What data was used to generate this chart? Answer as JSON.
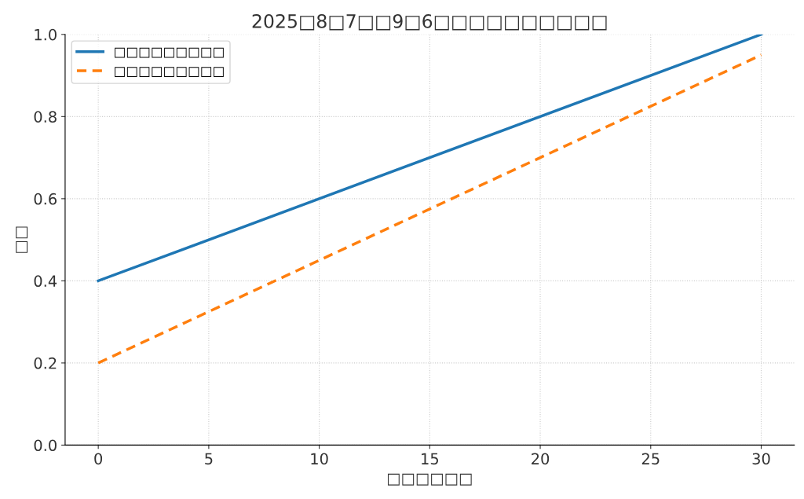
{
  "chart_data": {
    "type": "line",
    "title": "2025□8□7□□9□6□□□□□□□□□□",
    "xlabel": "□□□□□□",
    "ylabel": "□□",
    "x": [
      0,
      30
    ],
    "series": [
      {
        "name": "□□□□□□□□□",
        "color": "#1f77b4",
        "values": [
          0.4,
          1.0
        ],
        "line_style": "solid"
      },
      {
        "name": "□□□□□□□□□",
        "color": "#ff7f0e",
        "values": [
          0.2,
          0.95
        ],
        "line_style": "dashed"
      }
    ],
    "xlim": [
      -1.5,
      31.5
    ],
    "xticks": [
      0,
      5,
      10,
      15,
      20,
      25,
      30
    ],
    "ylim": [
      0,
      1.0
    ],
    "yticks": [
      {
        "value": 0,
        "label": "0.0"
      },
      {
        "value": 0.2,
        "label": "0.2"
      },
      {
        "value": 0.4,
        "label": "0.4"
      },
      {
        "value": 0.6,
        "label": "0.6"
      },
      {
        "value": 0.8,
        "label": "0.8"
      },
      {
        "value": 1.0,
        "label": "1.0"
      }
    ],
    "grid": true,
    "legend": "top left",
    "marker": "none"
  }
}
